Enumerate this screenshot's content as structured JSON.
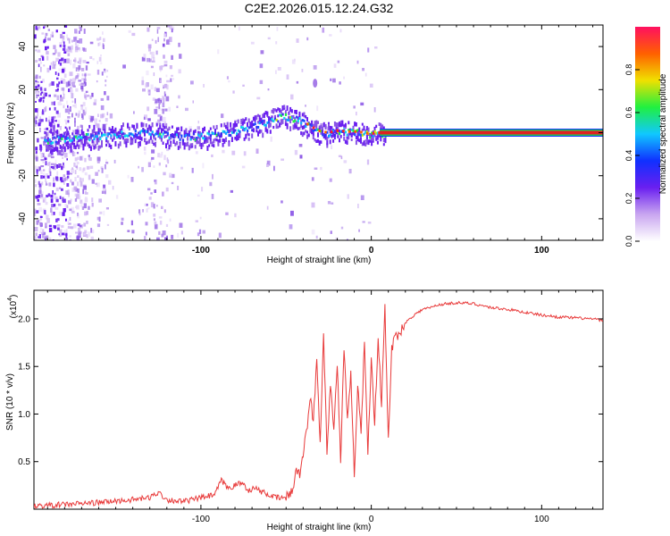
{
  "title": "C2E2.2026.015.12.24.G32",
  "colors": {
    "signal": "#e83a3a",
    "ridge_core": "#e02020",
    "ridge_edge": "#1fc45a",
    "frame": "#000000"
  },
  "chart_data": [
    {
      "type": "heatmap",
      "name": "spectrogram",
      "xlabel": "Height of straight line (km)",
      "ylabel": "Frequency (Hz)",
      "xlim": [
        -198,
        136
      ],
      "ylim": [
        -50,
        50
      ],
      "xticks": [
        -100,
        0,
        100
      ],
      "xtick_labels": [
        "-100",
        "0",
        "100"
      ],
      "yticks": [
        -40,
        -20,
        0,
        20,
        40
      ],
      "ytick_labels": [
        "-40",
        "-20",
        "0",
        "20",
        "40"
      ],
      "colorbar": {
        "label": "Normalized spectral amplitude",
        "range": [
          0,
          1
        ],
        "ticks": [
          0,
          0.2,
          0.4,
          0.6,
          0.8
        ],
        "tick_labels": [
          "0.0",
          "0.2",
          "0.4",
          "0.6",
          "0.8"
        ],
        "colors": [
          "#ffffff",
          "#c9a6f0",
          "#6a1ff0",
          "#1030ff",
          "#10c8ff",
          "#20f040",
          "#f0e000",
          "#ff6000",
          "#ff1060"
        ]
      },
      "ridge": {
        "x": [
          -190,
          -170,
          -150,
          -130,
          -110,
          -95,
          -80,
          -70,
          -60,
          -52,
          -45,
          -38,
          -32,
          -26,
          -20,
          -14,
          -8,
          -2,
          5,
          136
        ],
        "y": [
          -3,
          -1.5,
          -0.5,
          0.5,
          -1.5,
          -1,
          1,
          3,
          6,
          8,
          7,
          4,
          1,
          0,
          1,
          0.5,
          0.5,
          -0.5,
          0,
          0
        ]
      },
      "annotations": [
        {
          "x": -33,
          "y": 23,
          "text": ""
        }
      ]
    },
    {
      "type": "line",
      "name": "snr",
      "xlabel": "Height of straight line (km)",
      "ylabel": "SNR (10 * v/v)",
      "scale_label": "(x10",
      "scale_exponent": "4",
      "xlim": [
        -198,
        136
      ],
      "ylim": [
        0,
        2.3
      ],
      "xticks": [
        -100,
        0,
        100
      ],
      "xtick_labels": [
        "-100",
        "0",
        "100"
      ],
      "yticks": [
        0.5,
        1.0,
        1.5,
        2.0
      ],
      "ytick_labels": [
        "0.5",
        "1.0",
        "1.5",
        "2.0"
      ],
      "series": [
        {
          "name": "SNR",
          "x": [
            -198,
            -180,
            -160,
            -140,
            -130,
            -125,
            -120,
            -110,
            -100,
            -92,
            -88,
            -84,
            -80,
            -76,
            -72,
            -68,
            -64,
            -60,
            -56,
            -50,
            -46,
            -44,
            -42,
            -40,
            -38,
            -36,
            -34,
            -32,
            -30,
            -28,
            -26,
            -24,
            -22,
            -20,
            -18,
            -16,
            -14,
            -12,
            -10,
            -8,
            -6,
            -4,
            -2,
            0,
            2,
            4,
            6,
            8,
            10,
            12,
            14,
            16,
            18,
            20,
            22,
            26,
            30,
            35,
            40,
            50,
            60,
            70,
            80,
            90,
            100,
            110,
            120,
            130,
            136
          ],
          "values": [
            0.03,
            0.05,
            0.07,
            0.1,
            0.12,
            0.18,
            0.1,
            0.08,
            0.12,
            0.15,
            0.3,
            0.22,
            0.25,
            0.28,
            0.2,
            0.22,
            0.18,
            0.15,
            0.12,
            0.12,
            0.2,
            0.45,
            0.35,
            0.6,
            0.8,
            1.2,
            0.9,
            1.6,
            0.7,
            1.85,
            0.6,
            1.35,
            0.8,
            1.55,
            0.5,
            1.7,
            0.9,
            1.4,
            0.35,
            1.3,
            0.8,
            1.75,
            0.6,
            1.6,
            0.9,
            1.8,
            1.1,
            2.12,
            0.7,
            1.7,
            1.8,
            1.85,
            1.9,
            1.95,
            2.0,
            2.05,
            2.1,
            2.12,
            2.15,
            2.17,
            2.16,
            2.12,
            2.1,
            2.07,
            2.04,
            2.02,
            2.01,
            2.0,
            1.98
          ]
        }
      ]
    }
  ]
}
